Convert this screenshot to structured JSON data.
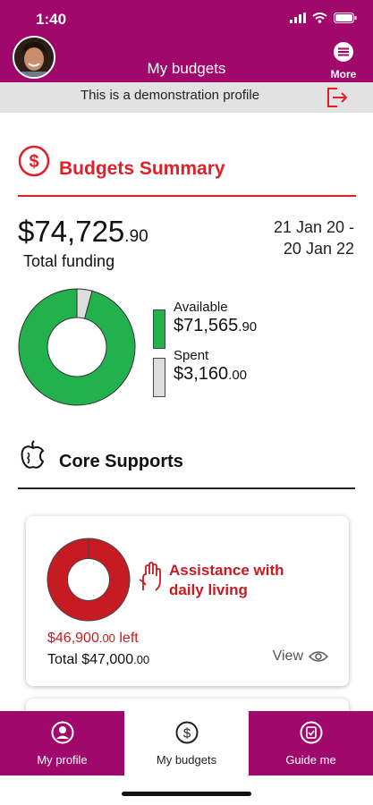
{
  "status_bar": {
    "time": "1:40"
  },
  "header": {
    "title": "My budgets",
    "more_label": "More"
  },
  "demo_banner": {
    "text": "This is a demonstration profile"
  },
  "summary": {
    "title": "Budgets Summary",
    "total_dollars": "$74,725",
    "total_cents": ".90",
    "total_label": "Total funding",
    "date_line1": "21 Jan 20 -",
    "date_line2": "20 Jan 22",
    "available_label": "Available",
    "available_dollars": "$71,565",
    "available_cents": ".90",
    "spent_label": "Spent",
    "spent_dollars": "$3,160",
    "spent_cents": ".00",
    "available_value": 71565.9,
    "spent_value": 3160.0,
    "available_color": "#22b14c",
    "spent_color": "#dddddd"
  },
  "core": {
    "title": "Core Supports",
    "card": {
      "title_line1": "Assistance with",
      "title_line2": "daily living",
      "left_dollars": "$46,900",
      "left_cents": ".00",
      "left_suffix": " left",
      "total_prefix": "Total ",
      "total_dollars": "$47,000",
      "total_cents": ".00",
      "view_label": "View",
      "left_value": 46900,
      "total_value": 47000,
      "left_color": "#c61b22",
      "spent_color": "#8aa0b0"
    }
  },
  "nav": {
    "profile_label": "My profile",
    "budgets_label": "My budgets",
    "guide_label": "Guide me",
    "accent": "#a0096b"
  },
  "icons": [
    "signal-icon",
    "wifi-icon",
    "battery-icon",
    "menu-icon",
    "exit-icon",
    "dollar-circle-icon",
    "apple-icon",
    "hands-icon",
    "eye-icon",
    "profile-icon",
    "dollar-icon",
    "checklist-icon"
  ]
}
